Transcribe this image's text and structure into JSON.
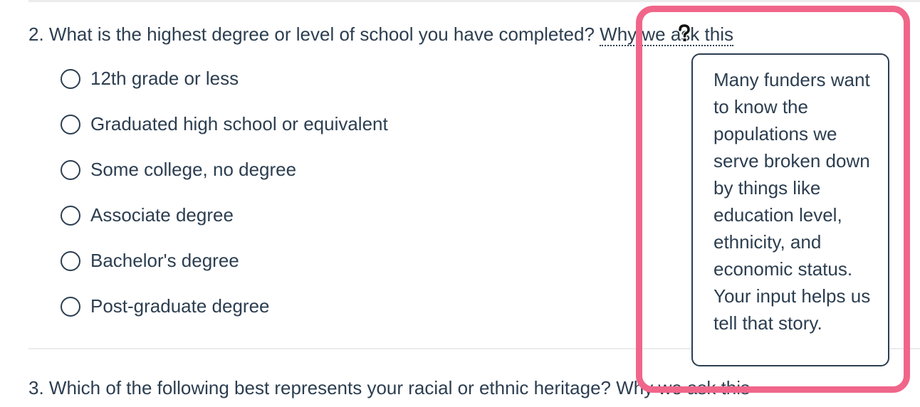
{
  "question2": {
    "text": "2. What is the highest degree or level of school you have completed?",
    "why_link": "Why we ask this",
    "options": [
      "12th grade or less",
      "Graduated high school or equivalent",
      "Some college, no degree",
      "Associate degree",
      "Bachelor's degree",
      "Post-graduate degree"
    ],
    "tooltip": "Many funders want to know the populations we serve broken down by things like education level, ethnicity, and economic status. Your input helps us tell that story."
  },
  "question3": {
    "text": "3. Which of the following best represents your racial or ethnic heritage?",
    "why_link": "Why we ask this"
  },
  "colors": {
    "text": "#2c3e50",
    "highlight": "#f0668a"
  },
  "cursor_icon": "help-cursor-icon"
}
